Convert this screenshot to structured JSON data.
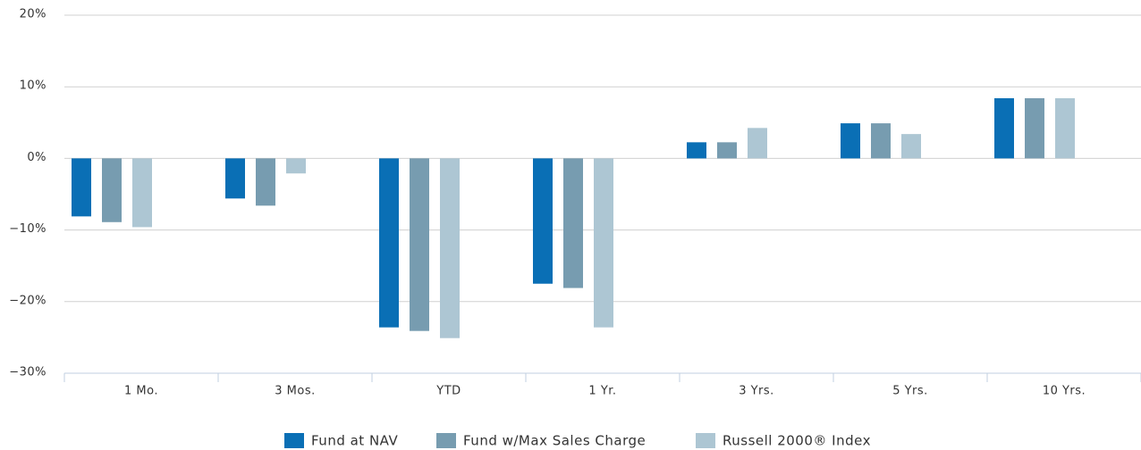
{
  "chart_data": {
    "type": "bar",
    "categories": [
      "1 Mo.",
      "3 Mos.",
      "YTD",
      "1 Yr.",
      "3 Yrs.",
      "5 Yrs.",
      "10 Yrs."
    ],
    "series": [
      {
        "name": "Fund at NAV",
        "color": "#0a6fb5",
        "values": [
          -8.1,
          -5.6,
          -23.6,
          -17.5,
          2.25,
          4.9,
          8.4
        ]
      },
      {
        "name": "Fund w/Max Sales Charge",
        "color": "#779cb0",
        "values": [
          -8.9,
          -6.6,
          -24.1,
          -18.1,
          2.25,
          4.9,
          8.4
        ]
      },
      {
        "name": "Russell 2000® Index",
        "color": "#adc6d3",
        "values": [
          -9.6,
          -2.1,
          -25.1,
          -23.6,
          4.25,
          3.4,
          8.4
        ]
      }
    ],
    "ylim": [
      -30,
      20
    ],
    "yticks": [
      {
        "value": 20,
        "label": "20%"
      },
      {
        "value": 10,
        "label": "10%"
      },
      {
        "value": 0,
        "label": "0%"
      },
      {
        "value": -10,
        "label": "−10%"
      },
      {
        "value": -20,
        "label": "−20%"
      },
      {
        "value": -30,
        "label": "−30%"
      }
    ],
    "grid": true,
    "legend": "bottom"
  }
}
